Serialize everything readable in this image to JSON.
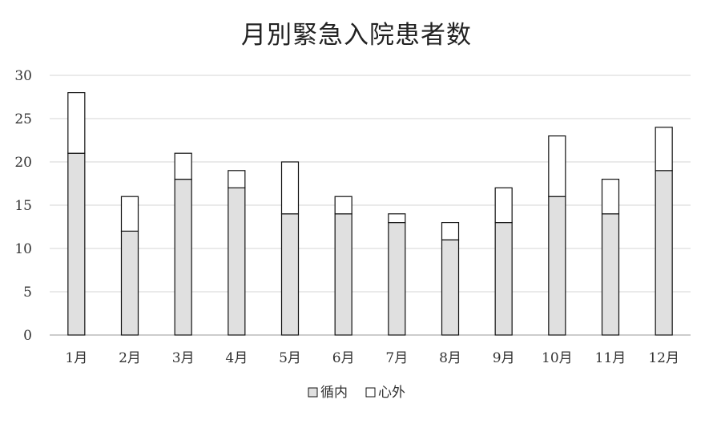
{
  "chart_data": {
    "type": "bar",
    "stacked": true,
    "title": "月別緊急入院患者数",
    "categories": [
      "1月",
      "2月",
      "3月",
      "4月",
      "5月",
      "6月",
      "7月",
      "8月",
      "9月",
      "10月",
      "11月",
      "12月"
    ],
    "series": [
      {
        "name": "循内",
        "color": "#e0e0e0",
        "values": [
          21,
          12,
          18,
          17,
          14,
          14,
          13,
          11,
          13,
          16,
          14,
          19
        ]
      },
      {
        "name": "心外",
        "color": "#ffffff",
        "values": [
          7,
          4,
          3,
          2,
          6,
          2,
          1,
          2,
          4,
          7,
          4,
          5
        ]
      }
    ],
    "ylim": [
      0,
      30
    ],
    "yticks": [
      0,
      5,
      10,
      15,
      20,
      25,
      30
    ],
    "grid": true,
    "legend_position": "bottom"
  }
}
